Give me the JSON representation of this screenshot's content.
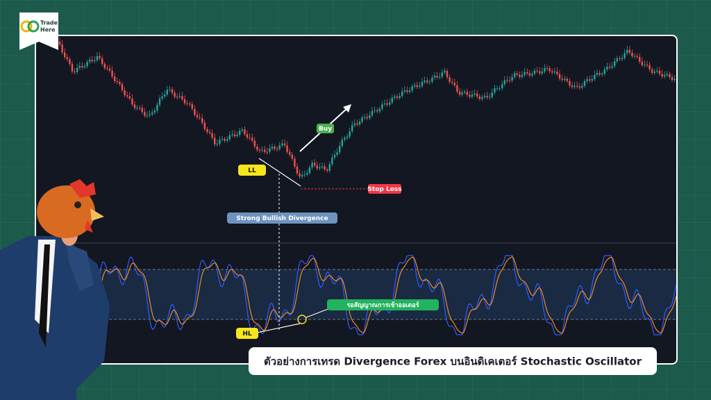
{
  "brand": {
    "line1": "Trade",
    "line2": "Here"
  },
  "labels": {
    "buy": "Buy",
    "ll": "LL",
    "stop_loss": "Stop Loss",
    "divergence": "Strong Bullish Divergence",
    "hl": "HL",
    "wait_signal": "รอสัญญาณการเข้าออเดอร์"
  },
  "caption": "ตัวอย่างการเทรด Divergence Forex บนอินดิเคเตอร์ Stochastic Oscillator"
}
